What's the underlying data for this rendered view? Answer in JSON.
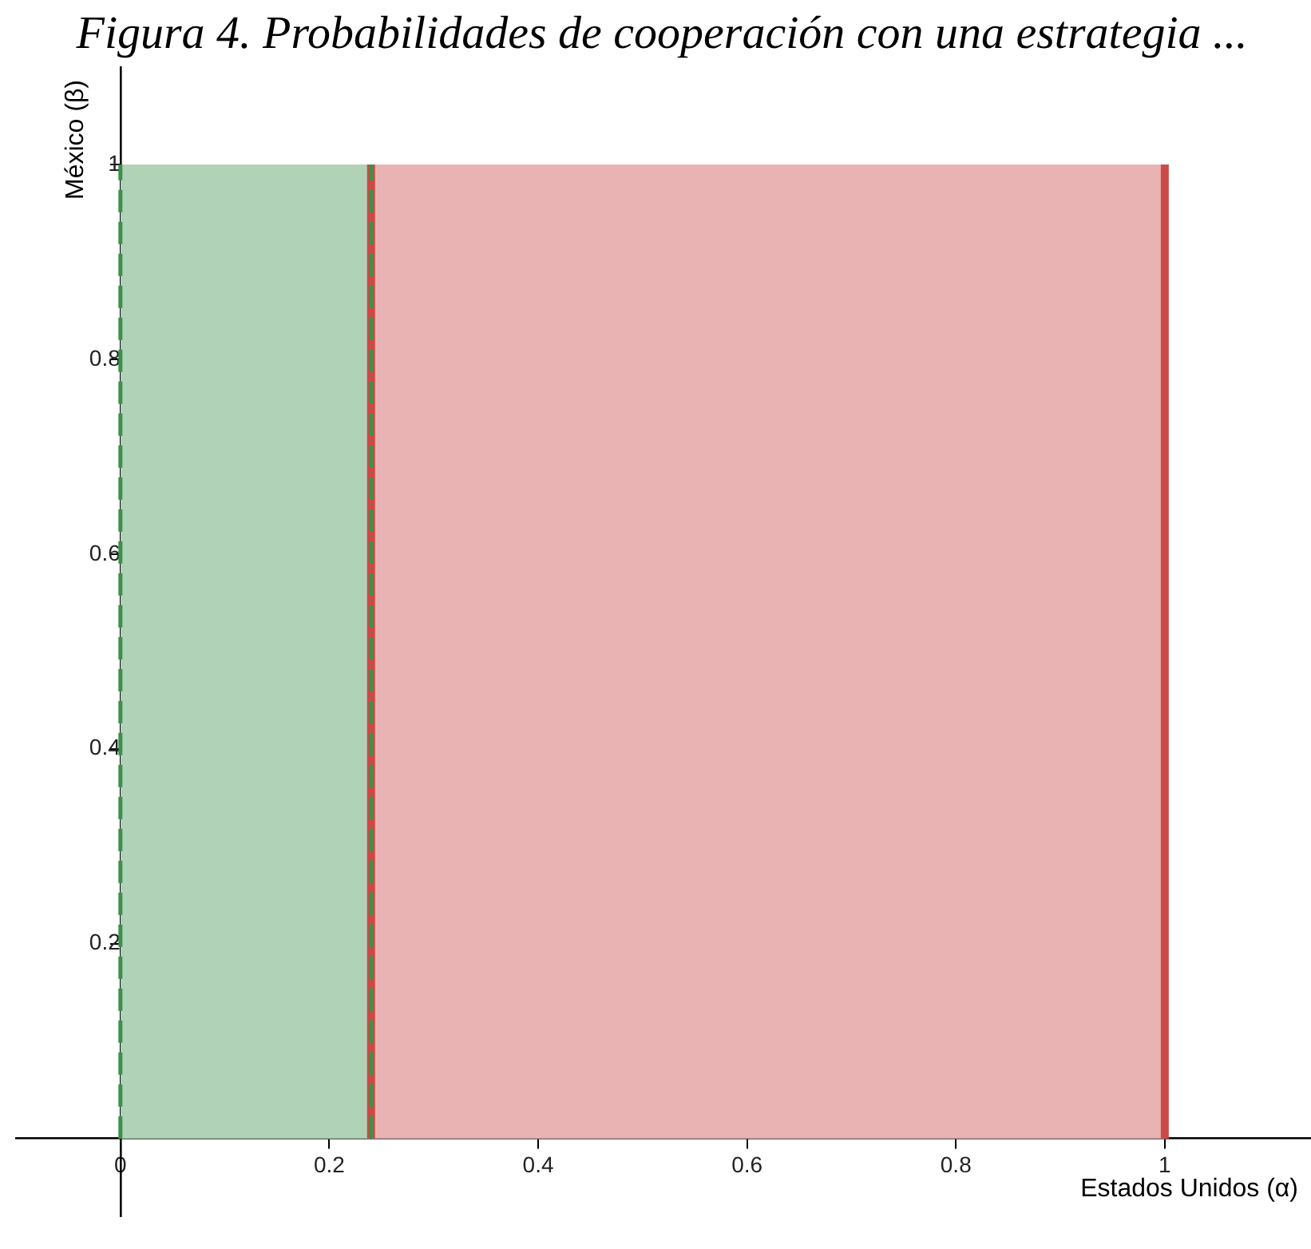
{
  "chart_data": {
    "type": "area",
    "title": "Figura 4. Probabilidades de cooperación con una estrategia ...",
    "xlabel": "Estados Unidos (α)",
    "ylabel": "México (β)",
    "xlim": [
      -0.1,
      1.14
    ],
    "ylim": [
      -0.08,
      1.1
    ],
    "xticks": [
      0,
      0.2,
      0.4,
      0.6,
      0.8,
      1
    ],
    "yticks": [
      0.2,
      0.4,
      0.6,
      0.8,
      1
    ],
    "grid": false,
    "legend": false,
    "marker": "none",
    "series": [
      {
        "type": "area",
        "color": "#b0d2b7",
        "x": [
          0,
          0.24
        ],
        "values": [
          1,
          1
        ]
      },
      {
        "type": "area",
        "color": "#e9b3b3",
        "x": [
          0.24,
          1
        ],
        "values": [
          1,
          1
        ]
      },
      {
        "type": "line",
        "color": "#cc4a45",
        "line_style": "solid",
        "x": [
          1,
          1
        ],
        "values": [
          0,
          1
        ]
      },
      {
        "type": "line",
        "color": "#cc4a45",
        "line_style": "solid",
        "x": [
          0.24,
          0.24
        ],
        "values": [
          0,
          1
        ]
      },
      {
        "type": "line",
        "color": "#3d8f4c",
        "line_style": "dashed",
        "x": [
          0.24,
          0.24
        ],
        "values": [
          0,
          1
        ]
      },
      {
        "type": "line",
        "color": "#3d8f4c",
        "line_style": "dashed",
        "x": [
          0,
          0
        ],
        "values": [
          0,
          1
        ]
      }
    ]
  }
}
